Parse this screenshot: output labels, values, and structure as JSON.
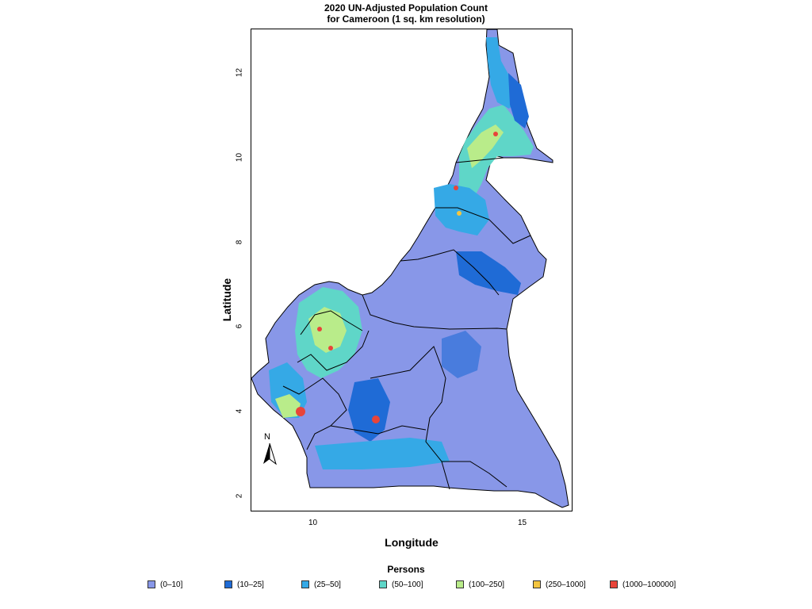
{
  "title_line1": "2020 UN-Adjusted Population Count",
  "title_line2": "for Cameroon (1 sq. km resolution)",
  "axes": {
    "xlabel": "Longitude",
    "ylabel": "Latitude",
    "xticks": [
      "10",
      "15"
    ],
    "yticks": [
      "2",
      "4",
      "6",
      "8",
      "10",
      "12"
    ]
  },
  "north_label": "N",
  "legend": {
    "title": "Persons",
    "items": [
      {
        "label": "(0–10]",
        "color": "#8897e8"
      },
      {
        "label": "(10–25]",
        "color": "#1f6bd6"
      },
      {
        "label": "(25–50]",
        "color": "#35a9e6"
      },
      {
        "label": "(50–100]",
        "color": "#5fd6c8"
      },
      {
        "label": "(100–250]",
        "color": "#b9ec8a"
      },
      {
        "label": "(250–1000]",
        "color": "#f3c540"
      },
      {
        "label": "(1000–100000]",
        "color": "#e8443a"
      }
    ]
  },
  "colors": {
    "base": "#8897e8",
    "low": "#1f6bd6",
    "mid": "#35a9e6",
    "midhigh": "#5fd6c8",
    "high": "#b9ec8a",
    "veryhigh": "#f3c540",
    "top": "#e8443a",
    "boundary": "#000000"
  }
}
